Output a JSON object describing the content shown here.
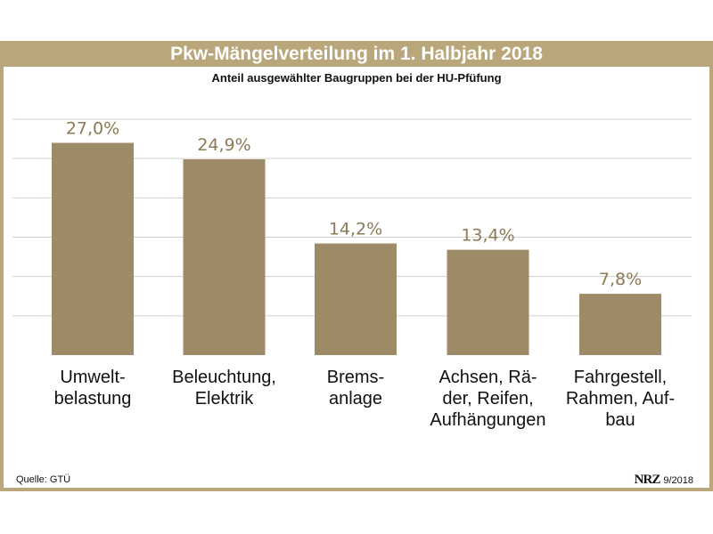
{
  "header": {
    "title": "Pkw-Mängelverteilung im 1. Halbjahr 2018"
  },
  "subtitle": "Anteil ausgewählter Baugruppen bei der HU-Pfüfung",
  "footer": {
    "source": "Quelle: GTÜ",
    "logo": "NRZ",
    "date": "9/2018"
  },
  "colors": {
    "bar": "#9d8a66",
    "label": "#8c7a55",
    "frame": "#b9a77b",
    "grid": "#d0d0d0"
  },
  "chart_data": {
    "type": "bar",
    "title": "Pkw-Mängelverteilung im 1. Halbjahr 2018",
    "subtitle": "Anteil ausgewählter Baugruppen bei der HU-Pfüfung",
    "categories": [
      "Umwelt-\nbelastung",
      "Beleuchtung,\nElektrik",
      "Brems-\nanlage",
      "Achsen, Rä-\nder, Reifen,\nAufhängungen",
      "Fahrgestell,\nRahmen, Auf-\nbau"
    ],
    "values": [
      27.0,
      24.9,
      14.2,
      13.4,
      7.8
    ],
    "data_labels": [
      "27,0%",
      "24,9%",
      "14,2%",
      "13,4%",
      "7,8%"
    ],
    "unit": "%",
    "xlabel": "",
    "ylabel": "",
    "ylim": [
      0,
      30
    ],
    "gridlines": [
      5,
      10,
      15,
      20,
      25,
      30
    ],
    "grid": true,
    "legend": "none"
  }
}
